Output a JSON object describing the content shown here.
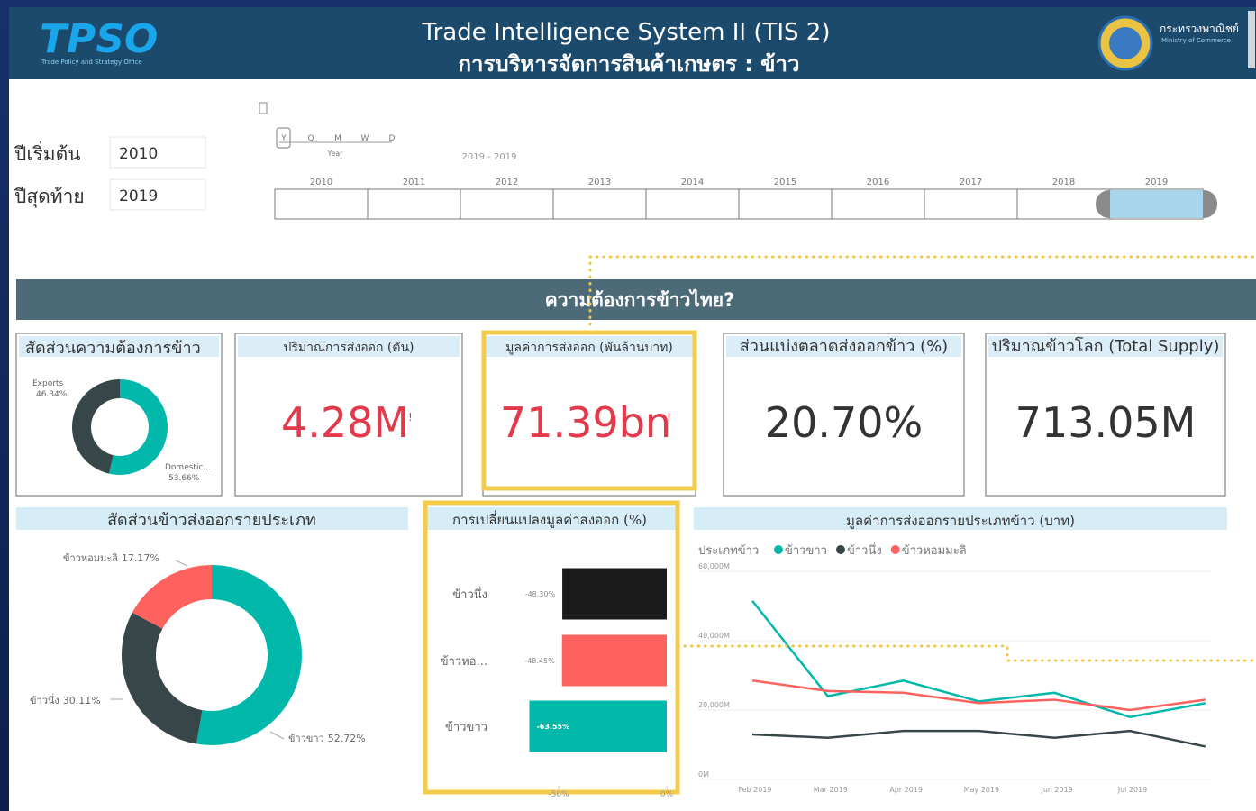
{
  "header": {
    "logo": "TPSO",
    "logo_subtitle": "Trade Policy and Strategy Office",
    "title": "Trade Intelligence System II (TIS 2)",
    "subtitle": "การบริหารจัดการสินค้าเกษตร : ข้าว",
    "ministry": "กระทรวงพาณิชย์",
    "ministry_en": "Ministry of Commerce"
  },
  "filters": [
    {
      "label": "ปีเริ่มต้น",
      "value": "2010"
    },
    {
      "label": "ปีสุดท้าย",
      "value": "2019"
    }
  ],
  "timeline": {
    "granularity": [
      "Y",
      "Q",
      "M",
      "W",
      "D"
    ],
    "level": "Year",
    "range": "2019 - 2019",
    "years": [
      "2010",
      "2011",
      "2012",
      "2013",
      "2014",
      "2015",
      "2016",
      "2017",
      "2018",
      "2019"
    ],
    "selected": "2019"
  },
  "section": "ความต้องการข้าวไทย?",
  "kpis": [
    {
      "title": "ปริมาณการส่งออก (ตัน)",
      "value": "4.28M",
      "color": "#e23a4a"
    },
    {
      "title": "มูลค่าการส่งออก (พันล้านบาท)",
      "value": "71.39bn",
      "color": "#e23a4a"
    },
    {
      "title": "ส่วนแบ่งตลาดส่งออกข้าว (%)",
      "value": "20.70%",
      "color": "#333333"
    },
    {
      "title": "ปริมาณข้าวโลก (Total Supply)",
      "value": "713.05M",
      "color": "#333333"
    }
  ],
  "chart_data": [
    {
      "type": "donut",
      "title": "สัดส่วนความต้องการข้าว",
      "categories": [
        "Domestic...",
        "Exports"
      ],
      "values": [
        53.66,
        46.34
      ],
      "value_labels": [
        "53.66%",
        "46.34%"
      ],
      "colors": [
        "#01b8aa",
        "#374649"
      ]
    },
    {
      "type": "donut",
      "title": "สัดส่วนข้าวส่งออกรายประเภท",
      "categories": [
        "ข้าวขาว",
        "ข้าวนึ่ง",
        "ข้าวหอมมะลิ"
      ],
      "values": [
        52.72,
        30.11,
        17.17
      ],
      "value_labels": [
        "52.72%",
        "30.11%",
        "17.17%"
      ],
      "colors": [
        "#01b8aa",
        "#374649",
        "#fd625e"
      ]
    },
    {
      "type": "hbar",
      "title": "การเปลี่ยนแปลงมูลค่าส่งออก (%)",
      "categories": [
        "ข้าวนึ่ง",
        "ข้าวหอ...",
        "ข้าวขาว"
      ],
      "values": [
        -48.3,
        -48.45,
        -63.55
      ],
      "value_labels": [
        "-48.30%",
        "-48.45%",
        "-63.55%"
      ],
      "colors": [
        "#1b1b1b",
        "#fd625e",
        "#01b8aa"
      ],
      "xlim": [
        -100,
        0
      ],
      "xticks": [
        {
          "value": -50,
          "label": "-50%"
        },
        {
          "value": 0,
          "label": "0%"
        }
      ]
    },
    {
      "type": "line",
      "title": "มูลค่าการส่งออกรายประเภทข้าว (บาท)",
      "legend_title": "ประเภทข้าว",
      "categories": [
        "Feb 2019",
        "Mar 2019",
        "Apr 2019",
        "May 2019",
        "Jun 2019",
        "Jul 2019",
        null
      ],
      "series": [
        {
          "name": "ข้าวขาว",
          "color": "#01b8aa",
          "values": [
            51500,
            24000,
            28500,
            22500,
            25000,
            18000,
            22000
          ]
        },
        {
          "name": "ข้าวนึ่ง",
          "color": "#374649",
          "values": [
            13000,
            12000,
            14000,
            14000,
            12000,
            14000,
            9500
          ]
        },
        {
          "name": "ข้าวหอมมะลิ",
          "color": "#fd625e",
          "values": [
            28500,
            25500,
            25000,
            22000,
            23000,
            20000,
            23000
          ]
        }
      ],
      "ylim": [
        0,
        60000
      ],
      "yticks": [
        {
          "value": 0,
          "label": "0M"
        },
        {
          "value": 20000,
          "label": "20,000M"
        },
        {
          "value": 40000,
          "label": "40,000M"
        },
        {
          "value": 60000,
          "label": "60,000M"
        }
      ],
      "grid": true
    }
  ]
}
